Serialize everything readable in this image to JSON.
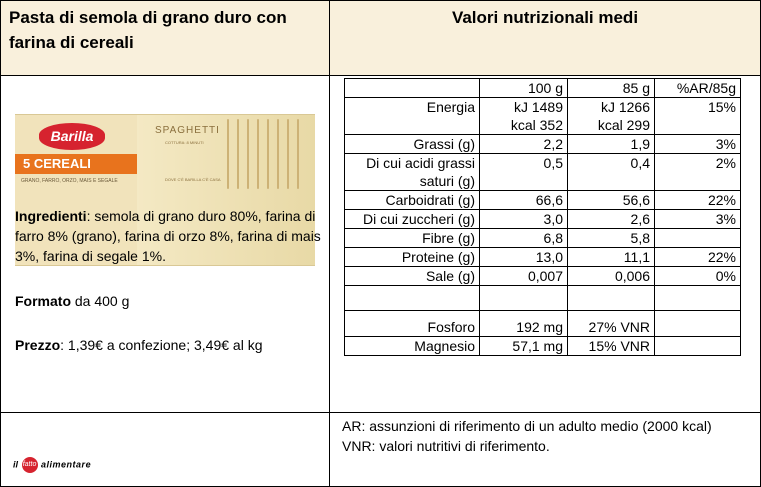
{
  "header": {
    "product_title_line1": "Pasta di semola di grano duro con",
    "product_title_line2": "farina di cereali",
    "nutrition_title": "Valori nutrizionali medi"
  },
  "package": {
    "brand": "Barilla",
    "band_text": "5 CEREALI",
    "grain_list": "GRANO, FARRO, ORZO, MAIS E SEGALE",
    "product_name": "SPAGHETTI",
    "cooking_note": "COTTURA: 8 MINUTI",
    "slogan": "DOVE C'È BARILLA C'È CASA",
    "colors": {
      "brand_red": "#d6232f",
      "band_orange": "#e8731d",
      "pack_cream": "#f1e3bb"
    }
  },
  "info": {
    "ingredients_label": "Ingredienti",
    "ingredients_text": ": semola di grano duro 80%, farina di farro 8% (grano), farina di orzo 8%, farina di mais 3%, farina di segale 1%.",
    "format_label": "Formato",
    "format_text": " da 400 g",
    "price_label": "Prezzo",
    "price_text": ": 1,39€ a confezione; 3,49€ al kg"
  },
  "table": {
    "header": {
      "label": "",
      "col1": "100 g",
      "col2": "85 g",
      "col3": "%AR/85g"
    },
    "energy": {
      "label": "Energia",
      "col1_kj": "kJ 1489",
      "col1_kcal": "kcal 352",
      "col2_kj": "kJ 1266",
      "col2_kcal": "kcal 299",
      "col3": "15%"
    },
    "rows": [
      {
        "label": "Grassi (g)",
        "col1": "2,2",
        "col2": "1,9",
        "col3": "3%"
      },
      {
        "label": "Di cui acidi grassi saturi (g)",
        "col1": "0,5",
        "col2": "0,4",
        "col3": "2%"
      },
      {
        "label": "Carboidrati (g)",
        "col1": "66,6",
        "col2": "56,6",
        "col3": "22%"
      },
      {
        "label": "Di cui zuccheri (g)",
        "col1": "3,0",
        "col2": "2,6",
        "col3": "3%"
      },
      {
        "label": "Fibre (g)",
        "col1": "6,8",
        "col2": "5,8",
        "col3": ""
      },
      {
        "label": "Proteine (g)",
        "col1": "13,0",
        "col2": "11,1",
        "col3": "22%"
      },
      {
        "label": "Sale (g)",
        "col1": "0,007",
        "col2": "0,006",
        "col3": "0%"
      },
      {
        "label": "",
        "col1": "",
        "col2": "",
        "col3": ""
      }
    ],
    "minerals": [
      {
        "label": "Fosforo",
        "col1": "192 mg",
        "col2": "27% VNR"
      },
      {
        "label": "Magnesio",
        "col1": "57,1 mg",
        "col2": "15% VNR"
      }
    ]
  },
  "footer": {
    "note_ar": "AR: assunzioni di riferimento di un adulto medio (2000 kcal)",
    "note_vnr": "VNR: valori nutritivi di riferimento.",
    "brand_il": "il",
    "brand_fatto": "fatto",
    "brand_alimentare": "alimentare"
  }
}
